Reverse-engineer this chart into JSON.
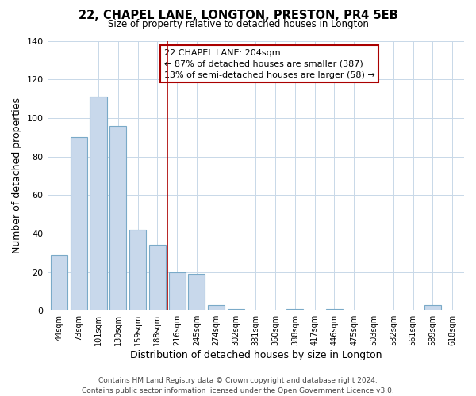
{
  "title": "22, CHAPEL LANE, LONGTON, PRESTON, PR4 5EB",
  "subtitle": "Size of property relative to detached houses in Longton",
  "xlabel": "Distribution of detached houses by size in Longton",
  "ylabel": "Number of detached properties",
  "bar_labels": [
    "44sqm",
    "73sqm",
    "101sqm",
    "130sqm",
    "159sqm",
    "188sqm",
    "216sqm",
    "245sqm",
    "274sqm",
    "302sqm",
    "331sqm",
    "360sqm",
    "388sqm",
    "417sqm",
    "446sqm",
    "475sqm",
    "503sqm",
    "532sqm",
    "561sqm",
    "589sqm",
    "618sqm"
  ],
  "bar_values": [
    29,
    90,
    111,
    96,
    42,
    34,
    20,
    19,
    3,
    1,
    0,
    0,
    1,
    0,
    1,
    0,
    0,
    0,
    0,
    3,
    0
  ],
  "bar_color": "#c8d8eb",
  "bar_edge_color": "#7aaac8",
  "vline_x": 5.5,
  "vline_color": "#aa0000",
  "ylim": [
    0,
    140
  ],
  "yticks": [
    0,
    20,
    40,
    60,
    80,
    100,
    120,
    140
  ],
  "annotation_title": "22 CHAPEL LANE: 204sqm",
  "annotation_line1": "← 87% of detached houses are smaller (387)",
  "annotation_line2": "13% of semi-detached houses are larger (58) →",
  "annotation_box_color": "#ffffff",
  "annotation_box_edge": "#aa0000",
  "footer_line1": "Contains HM Land Registry data © Crown copyright and database right 2024.",
  "footer_line2": "Contains public sector information licensed under the Open Government Licence v3.0.",
  "background_color": "#ffffff",
  "grid_color": "#c8d8e8"
}
